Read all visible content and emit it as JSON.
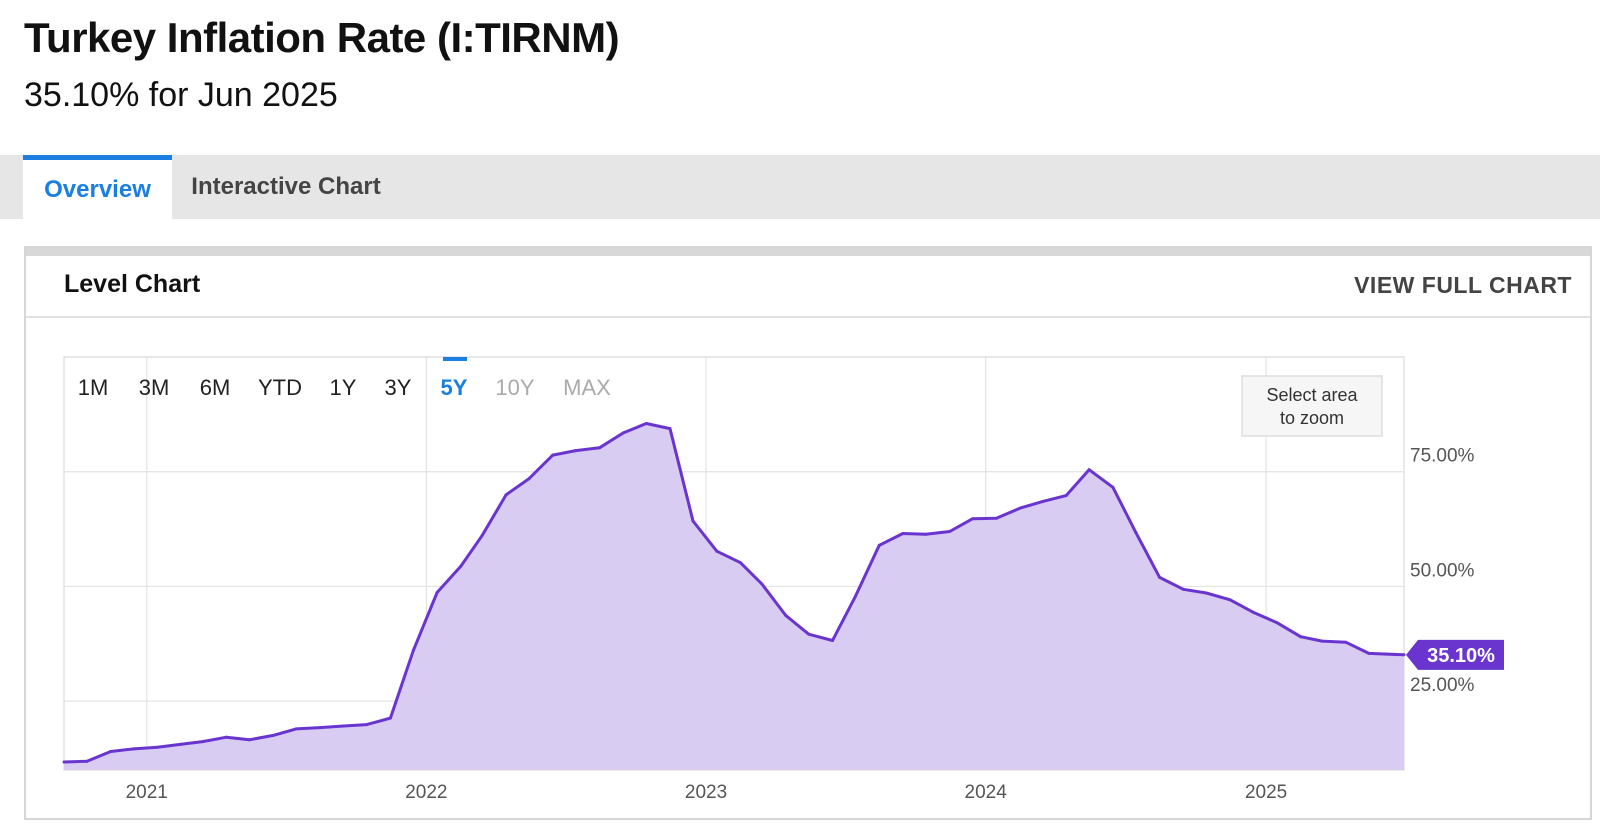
{
  "header": {
    "title": "Turkey Inflation Rate (I:TIRNM)",
    "subtitle": "35.10% for Jun 2025"
  },
  "tabs": [
    {
      "label": "Overview",
      "active": true
    },
    {
      "label": "Interactive Chart",
      "active": false
    }
  ],
  "panel": {
    "title": "Level Chart",
    "view_full_label": "VIEW FULL CHART"
  },
  "range_buttons": [
    {
      "label": "1M",
      "state": "normal"
    },
    {
      "label": "3M",
      "state": "normal"
    },
    {
      "label": "6M",
      "state": "normal"
    },
    {
      "label": "YTD",
      "state": "normal"
    },
    {
      "label": "1Y",
      "state": "normal"
    },
    {
      "label": "3Y",
      "state": "normal"
    },
    {
      "label": "5Y",
      "state": "selected"
    },
    {
      "label": "10Y",
      "state": "disabled"
    },
    {
      "label": "MAX",
      "state": "disabled"
    }
  ],
  "zoom_hint": {
    "line1": "Select area",
    "line2": "to zoom"
  },
  "colors": {
    "accent": "#1a7fe0",
    "line": "#6a35cf",
    "fill": "#d9ccf3",
    "badge": "#6a35cf",
    "grid": "#e3e3e3"
  },
  "chart_data": {
    "type": "area",
    "title": "",
    "xlabel": "",
    "ylabel": "",
    "x_ticks": [
      "2021",
      "2022",
      "2023",
      "2024",
      "2025"
    ],
    "y_ticks": [
      "25.00%",
      "50.00%",
      "75.00%"
    ],
    "ylim": [
      10,
      100
    ],
    "y_unit": "%",
    "grid": true,
    "last_value_label": "35.10%",
    "series": [
      {
        "name": "",
        "x": [
          "2020-09",
          "2020-10",
          "2020-11",
          "2020-12",
          "2021-01",
          "2021-02",
          "2021-03",
          "2021-04",
          "2021-05",
          "2021-06",
          "2021-07",
          "2021-08",
          "2021-09",
          "2021-10",
          "2021-11",
          "2021-12",
          "2022-01",
          "2022-02",
          "2022-03",
          "2022-04",
          "2022-05",
          "2022-06",
          "2022-07",
          "2022-08",
          "2022-09",
          "2022-10",
          "2022-11",
          "2022-12",
          "2023-01",
          "2023-02",
          "2023-03",
          "2023-04",
          "2023-05",
          "2023-06",
          "2023-07",
          "2023-08",
          "2023-09",
          "2023-10",
          "2023-11",
          "2023-12",
          "2024-01",
          "2024-02",
          "2024-03",
          "2024-04",
          "2024-05",
          "2024-06",
          "2024-07",
          "2024-08",
          "2024-09",
          "2024-10",
          "2024-11",
          "2024-12",
          "2025-01",
          "2025-02",
          "2025-03",
          "2025-04",
          "2025-05",
          "2025-06"
        ],
        "values": [
          11.75,
          11.89,
          14.03,
          14.6,
          14.97,
          15.61,
          16.19,
          17.14,
          16.59,
          17.53,
          18.95,
          19.25,
          19.58,
          19.89,
          21.31,
          36.08,
          48.69,
          54.44,
          61.14,
          69.97,
          73.5,
          78.62,
          79.6,
          80.21,
          83.45,
          85.51,
          84.39,
          64.27,
          57.68,
          55.18,
          50.51,
          43.68,
          39.59,
          38.21,
          47.83,
          58.94,
          61.53,
          61.36,
          61.98,
          64.77,
          64.86,
          67.07,
          68.5,
          69.8,
          75.45,
          71.6,
          61.78,
          51.97,
          49.38,
          48.58,
          47.09,
          44.38,
          42.12,
          39.05,
          38.1,
          37.86,
          35.41,
          35.1
        ]
      }
    ]
  }
}
